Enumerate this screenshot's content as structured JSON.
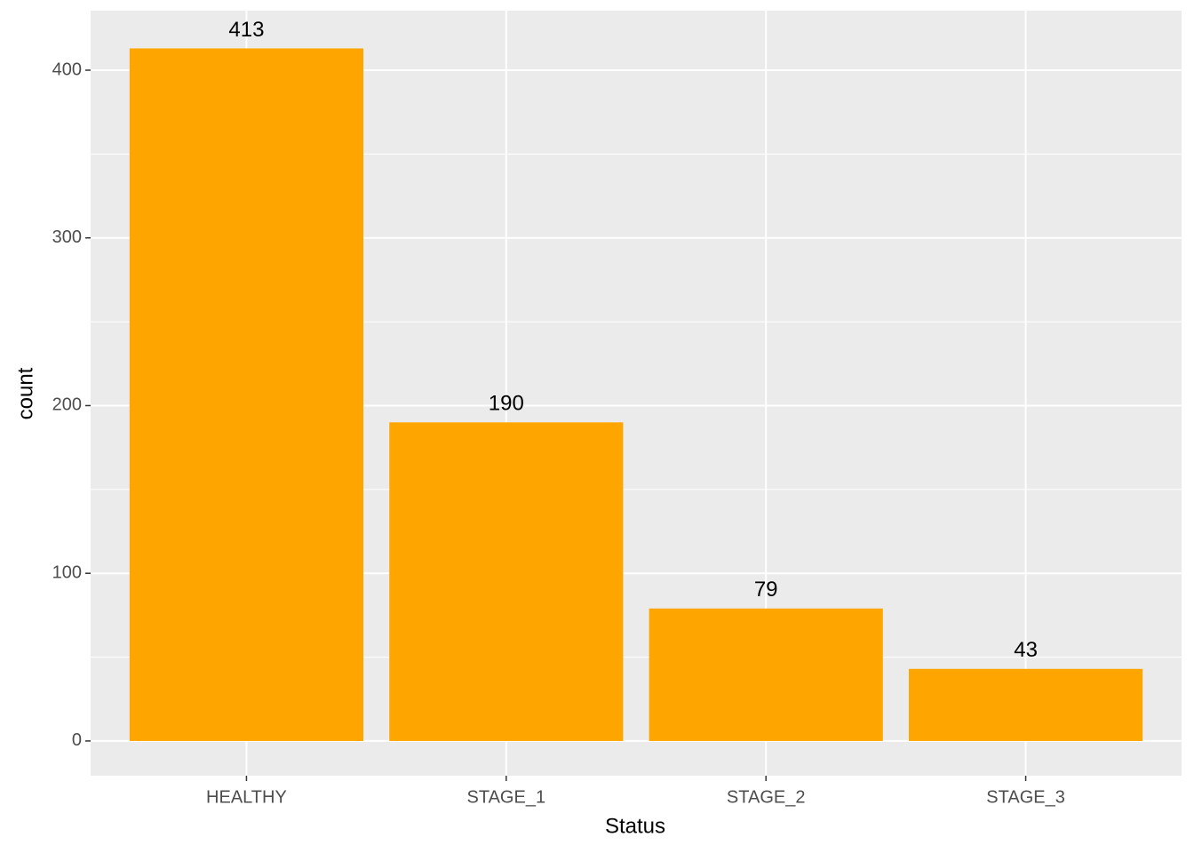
{
  "chart_data": {
    "type": "bar",
    "categories": [
      "HEALTHY",
      "STAGE_1",
      "STAGE_2",
      "STAGE_3"
    ],
    "values": [
      413,
      190,
      79,
      43
    ],
    "color": "#ffa500",
    "x_label": "Status",
    "y_label": "count",
    "ylim": [
      -20.7,
      435.5
    ],
    "yticks": [
      0,
      100,
      200,
      300,
      400
    ],
    "grid": true
  }
}
